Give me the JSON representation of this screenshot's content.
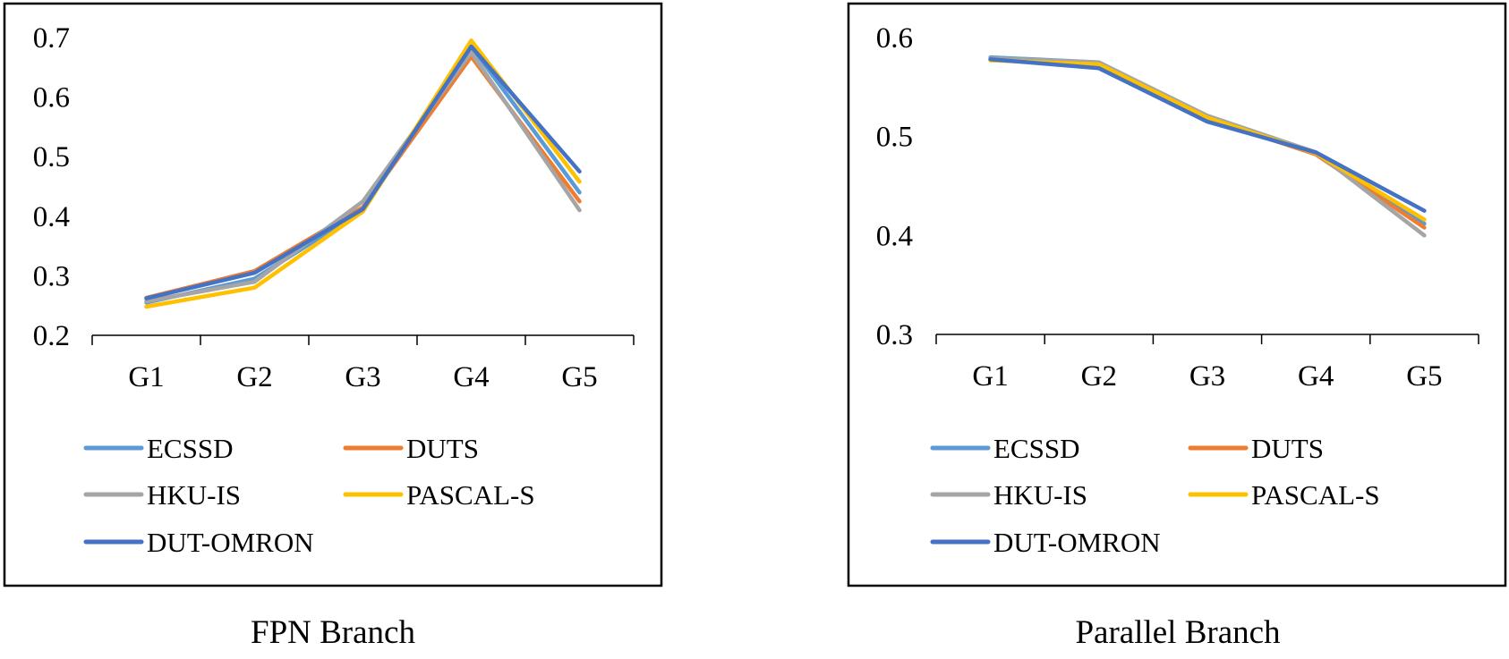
{
  "colors": {
    "ECSSD": "#5B9BD5",
    "DUTS": "#ED7D31",
    "HKU-IS": "#A5A5A5",
    "PASCAL-S": "#FFC000",
    "DUT-OMRON": "#4472C4"
  },
  "chart_data": [
    {
      "type": "line",
      "caption": "FPN Branch",
      "categories": [
        "G1",
        "G2",
        "G3",
        "G4",
        "G5"
      ],
      "ylim": [
        0.2,
        0.7
      ],
      "yticks": [
        "0.2",
        "0.3",
        "0.4",
        "0.5",
        "0.6",
        "0.7"
      ],
      "grid": false,
      "legend": "bottom",
      "series": [
        {
          "name": "ECSSD",
          "values": [
            0.255,
            0.295,
            0.41,
            0.685,
            0.44
          ]
        },
        {
          "name": "DUTS",
          "values": [
            0.263,
            0.308,
            0.415,
            0.668,
            0.425
          ]
        },
        {
          "name": "HKU-IS",
          "values": [
            0.257,
            0.29,
            0.425,
            0.675,
            0.41
          ]
        },
        {
          "name": "PASCAL-S",
          "values": [
            0.248,
            0.28,
            0.408,
            0.695,
            0.458
          ]
        },
        {
          "name": "DUT-OMRON",
          "values": [
            0.262,
            0.305,
            0.412,
            0.685,
            0.475
          ]
        }
      ]
    },
    {
      "type": "line",
      "caption": "Parallel Branch",
      "categories": [
        "G1",
        "G2",
        "G3",
        "G4",
        "G5"
      ],
      "ylim": [
        0.3,
        0.6
      ],
      "yticks": [
        "0.3",
        "0.4",
        "0.5",
        "0.6"
      ],
      "grid": false,
      "legend": "bottom",
      "series": [
        {
          "name": "ECSSD",
          "values": [
            0.58,
            0.575,
            0.52,
            0.484,
            0.412
          ]
        },
        {
          "name": "DUTS",
          "values": [
            0.578,
            0.572,
            0.518,
            0.482,
            0.408
          ]
        },
        {
          "name": "HKU-IS",
          "values": [
            0.579,
            0.575,
            0.521,
            0.484,
            0.4
          ]
        },
        {
          "name": "PASCAL-S",
          "values": [
            0.577,
            0.573,
            0.519,
            0.483,
            0.416
          ]
        },
        {
          "name": "DUT-OMRON",
          "values": [
            0.578,
            0.569,
            0.515,
            0.484,
            0.425
          ]
        }
      ]
    }
  ]
}
